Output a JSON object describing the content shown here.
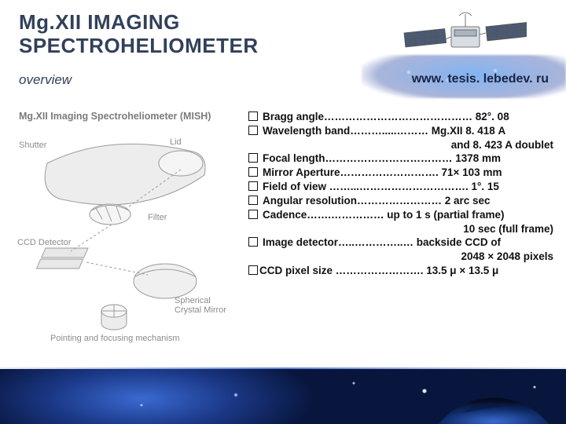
{
  "title_line1": "Mg.XII IMAGING",
  "title_line2": "SPECTROHELIOMETER",
  "subtitle": "overview",
  "url": "www. tesis. lebedev. ru",
  "diagram": {
    "heading": "Mg.XII Imaging Spectroheliometer (MISH)",
    "labels": {
      "shutter": "Shutter",
      "lid": "Lid",
      "filter": "Filter",
      "ccd": "CCD Detector",
      "mirror": "Spherical\nCrystal Mirror",
      "pointing": "Pointing and focusing mechanism"
    },
    "colors": {
      "line": "#9a9a9a",
      "fill": "#efefef",
      "text": "#8c8c8c"
    }
  },
  "specs": [
    {
      "label": "Bragg angle",
      "dots": "……………………………………",
      "value": " 82°. 08"
    },
    {
      "label": "Wavelength band",
      "dots": "……….....………",
      "value": " Mg.XII 8. 418 А"
    },
    {
      "cont": "and 8. 423 A doublet"
    },
    {
      "label": "Focal length",
      "dots": "………………………………",
      "value": " 1378 mm"
    },
    {
      "label": "Mirror Aperture",
      "dots": "……………………….",
      "value": " 71× 103 mm"
    },
    {
      "label": "Field of view ",
      "dots": "……...………………………….",
      "value": " 1°. 15"
    },
    {
      "label": "Angular resolution",
      "dots": "……………………",
      "value": " 2 arc sec"
    },
    {
      "label": "Cadence",
      "dots": "…….……………",
      "value": " up to 1 s (partial frame)"
    },
    {
      "cont": "10 sec (full frame)"
    },
    {
      "label": "Image detector",
      "dots": "…..…………..…",
      "value": " backside CCD of"
    },
    {
      "cont": "2048 × 2048 pixels"
    },
    {
      "label": "CCD pixel size ",
      "dots": "…………………….",
      "value": " 13.5 μ  × 13.5 μ",
      "tight": true
    }
  ],
  "colors": {
    "title": "#32405a",
    "text": "#111111"
  }
}
